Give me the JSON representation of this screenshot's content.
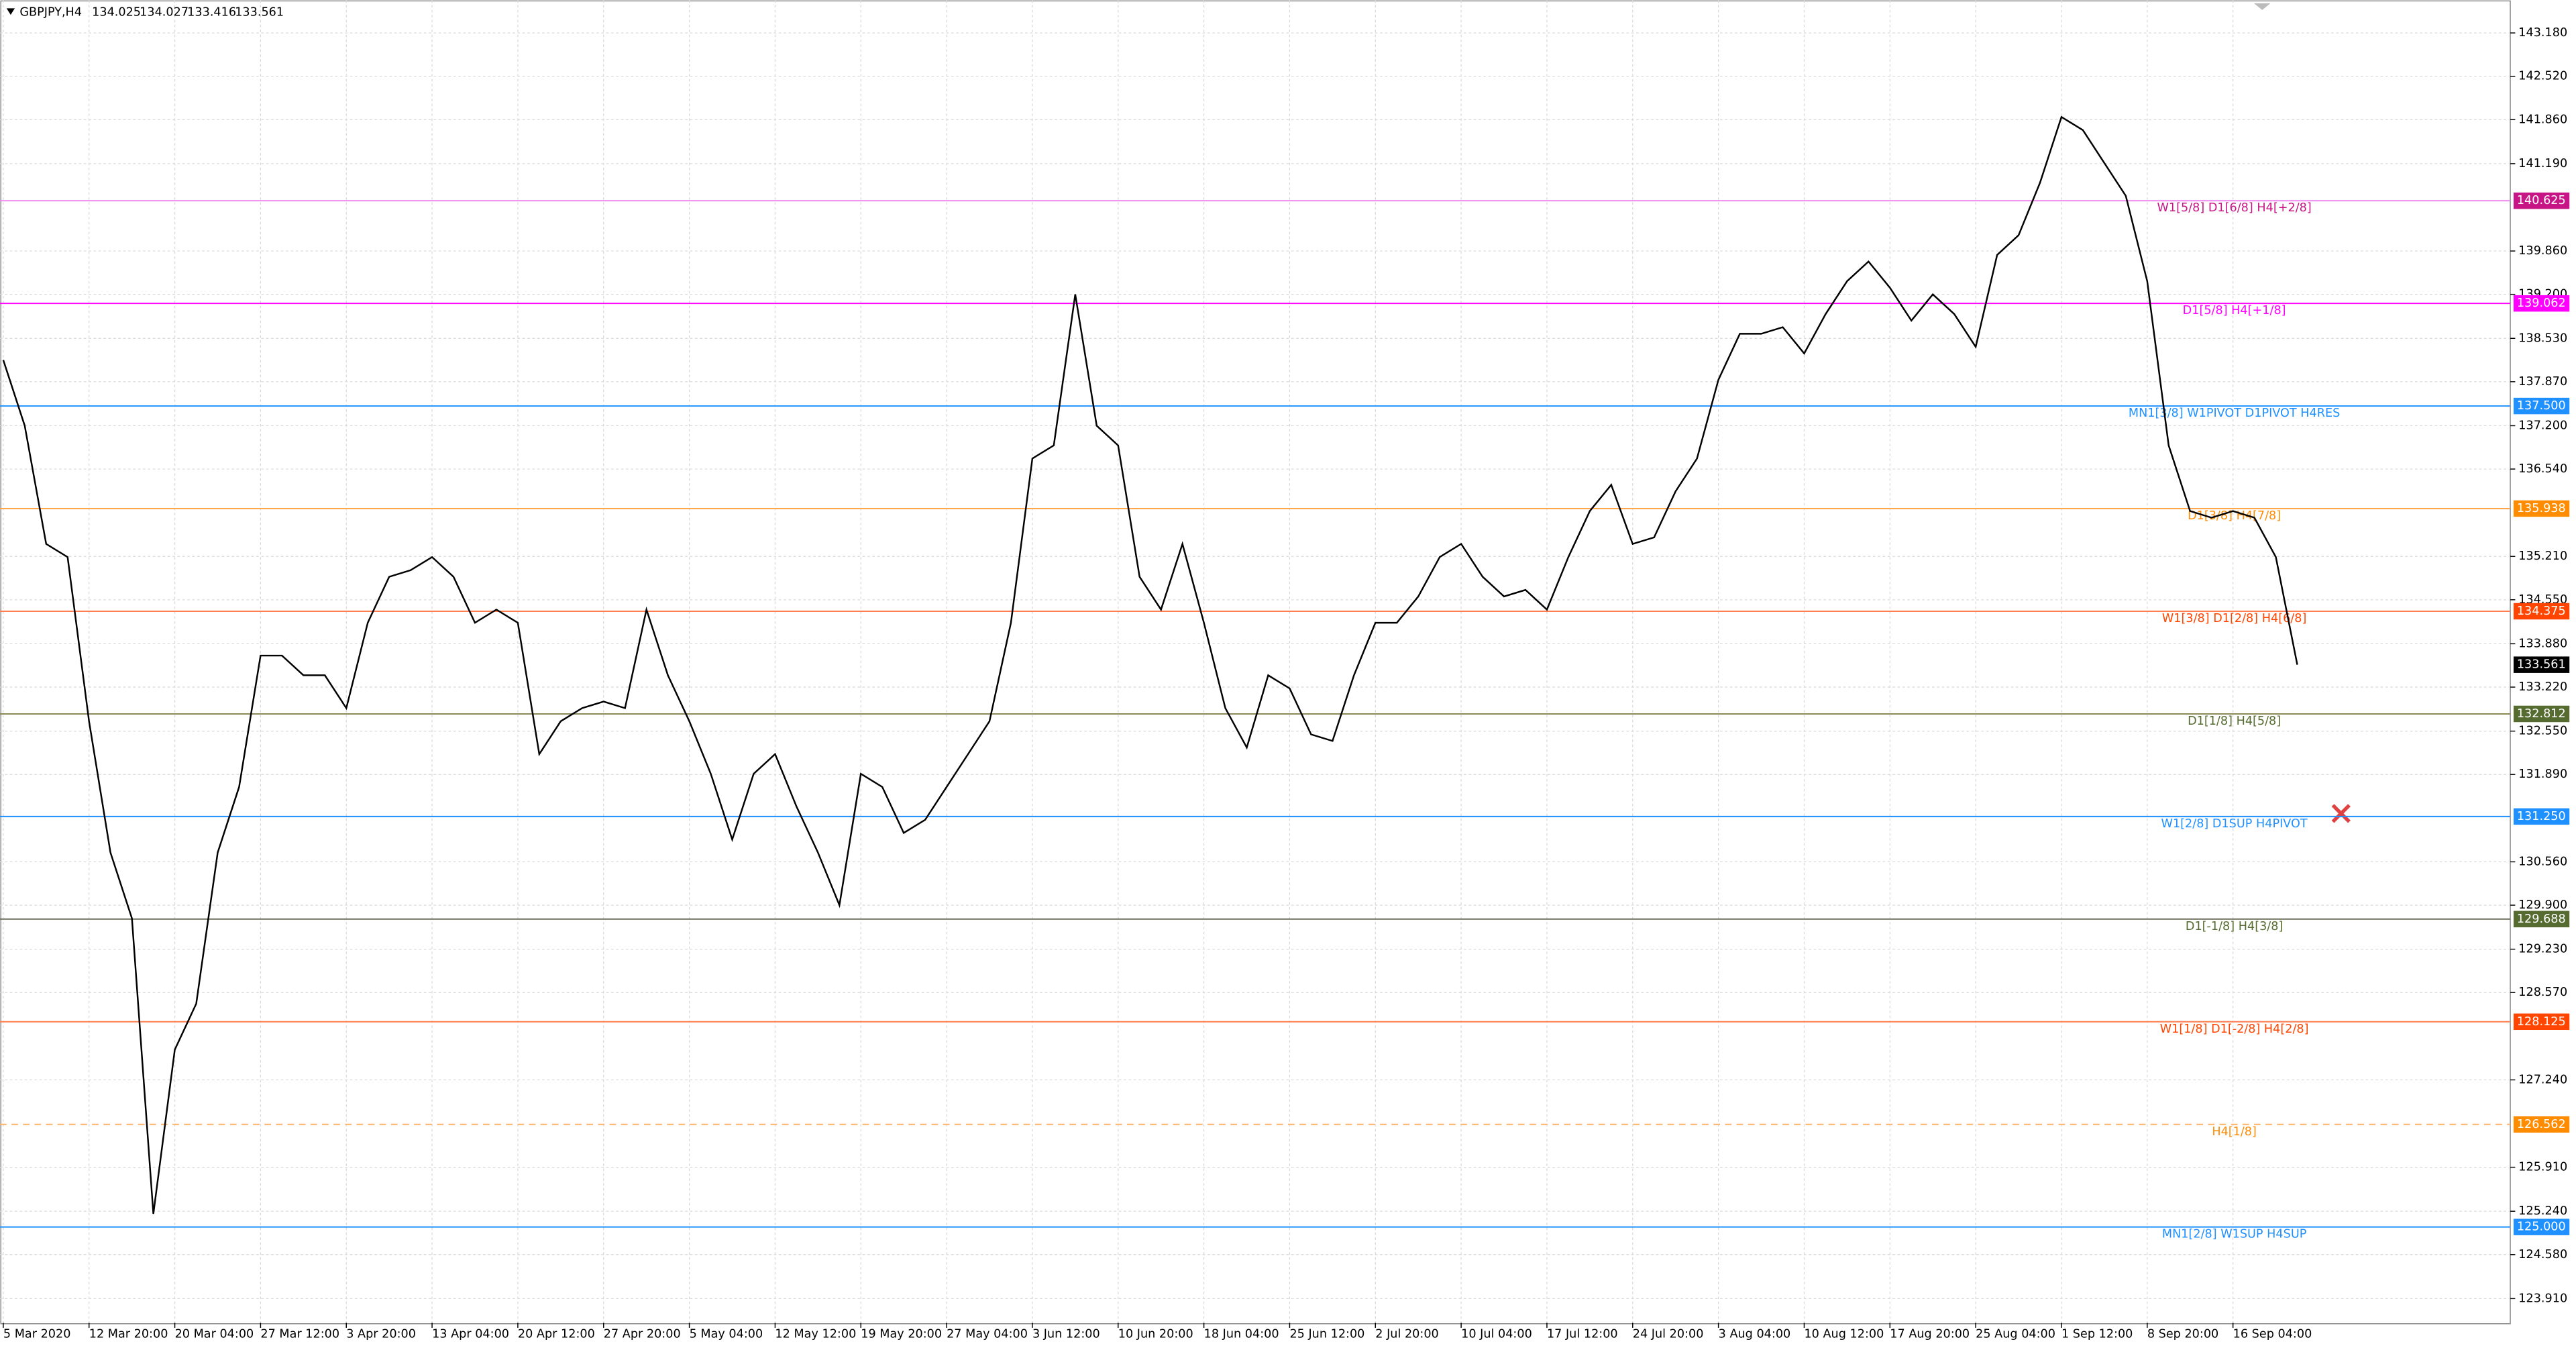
{
  "chart_data": {
    "type": "line",
    "title": "GBPJPY,H4",
    "header_values": [
      134.025,
      134.027,
      133.416,
      133.561
    ],
    "categories": [
      "5 Mar 2020",
      null,
      null,
      null,
      "12 Mar 20:00",
      null,
      null,
      null,
      "20 Mar 04:00",
      null,
      null,
      null,
      "27 Mar 12:00",
      null,
      null,
      null,
      "3 Apr 20:00",
      null,
      null,
      null,
      "13 Apr 04:00",
      null,
      null,
      null,
      "20 Apr 12:00",
      null,
      null,
      null,
      "27 Apr 20:00",
      null,
      null,
      null,
      "5 May 04:00",
      null,
      null,
      null,
      "12 May 12:00",
      null,
      null,
      null,
      "19 May 20:00",
      null,
      null,
      null,
      "27 May 04:00",
      null,
      null,
      null,
      "3 Jun 12:00",
      null,
      null,
      null,
      "10 Jun 20:00",
      null,
      null,
      null,
      "18 Jun 04:00",
      null,
      null,
      null,
      "25 Jun 12:00",
      null,
      null,
      null,
      "2 Jul 20:00",
      null,
      null,
      null,
      "10 Jul 04:00",
      null,
      null,
      null,
      "17 Jul 12:00",
      null,
      null,
      null,
      "24 Jul 20:00",
      null,
      null,
      null,
      "3 Aug 04:00",
      null,
      null,
      null,
      "10 Aug 12:00",
      null,
      null,
      null,
      "17 Aug 20:00",
      null,
      null,
      null,
      "25 Aug 04:00",
      null,
      null,
      null,
      "1 Sep 12:00",
      null,
      null,
      null,
      "8 Sep 20:00",
      null,
      null,
      null,
      "16 Sep 04:00",
      null,
      null,
      null
    ],
    "color": "#000000",
    "values": [
      138.2,
      137.2,
      135.4,
      135.2,
      132.7,
      130.7,
      129.7,
      125.2,
      127.7,
      128.4,
      130.7,
      131.7,
      133.7,
      133.7,
      133.4,
      133.4,
      132.9,
      134.2,
      134.9,
      135.0,
      135.2,
      134.9,
      134.2,
      134.4,
      134.2,
      132.2,
      132.7,
      132.9,
      133.0,
      132.9,
      134.4,
      133.4,
      132.7,
      131.9,
      130.9,
      131.9,
      132.2,
      131.4,
      130.7,
      129.9,
      131.9,
      131.7,
      131.0,
      131.2,
      131.7,
      132.2,
      132.7,
      134.2,
      136.7,
      136.9,
      139.2,
      137.2,
      136.9,
      134.9,
      134.4,
      135.4,
      134.2,
      132.9,
      132.3,
      133.4,
      133.2,
      132.5,
      132.4,
      133.4,
      134.2,
      134.2,
      134.6,
      135.2,
      135.4,
      134.9,
      134.6,
      134.7,
      134.4,
      135.2,
      135.9,
      136.3,
      135.4,
      135.5,
      136.2,
      136.7,
      137.9,
      138.6,
      138.6,
      138.7,
      138.3,
      138.9,
      139.4,
      139.7,
      139.3,
      138.8,
      139.2,
      138.9,
      138.4,
      139.8,
      140.1,
      140.9,
      141.9,
      141.7,
      141.2,
      140.7,
      139.4,
      136.9,
      135.9,
      135.8,
      135.9,
      135.8,
      135.2,
      133.561
    ],
    "ylim": [
      123.54,
      143.68
    ],
    "yticks": [
      {
        "value": 143.18,
        "label": "143.180"
      },
      {
        "value": 142.52,
        "label": "142.520"
      },
      {
        "value": 141.86,
        "label": "141.860"
      },
      {
        "value": 141.19,
        "label": "141.190"
      },
      {
        "value": 139.86,
        "label": "139.860"
      },
      {
        "value": 139.2,
        "label": "139.200"
      },
      {
        "value": 138.53,
        "label": "138.530"
      },
      {
        "value": 137.87,
        "label": "137.870"
      },
      {
        "value": 137.2,
        "label": "137.200"
      },
      {
        "value": 136.54,
        "label": "136.540"
      },
      {
        "value": 135.21,
        "label": "135.210"
      },
      {
        "value": 134.55,
        "label": "134.550"
      },
      {
        "value": 133.88,
        "label": "133.880"
      },
      {
        "value": 133.22,
        "label": "133.220"
      },
      {
        "value": 132.55,
        "label": "132.550"
      },
      {
        "value": 131.89,
        "label": "131.890"
      },
      {
        "value": 130.56,
        "label": "130.560"
      },
      {
        "value": 129.9,
        "label": "129.900"
      },
      {
        "value": 129.23,
        "label": "129.230"
      },
      {
        "value": 128.57,
        "label": "128.570"
      },
      {
        "value": 127.24,
        "label": "127.240"
      },
      {
        "value": 125.91,
        "label": "125.910"
      },
      {
        "value": 125.24,
        "label": "125.240"
      },
      {
        "value": 124.58,
        "label": "124.580"
      },
      {
        "value": 123.91,
        "label": "123.910"
      }
    ],
    "grid": true,
    "levels": [
      {
        "value": 140.625,
        "price_label": "140.625",
        "label": "W1[5/8] D1[6/8] H4[+2/8]",
        "color": "#c71585",
        "line_color": "#ee82ee",
        "dashed": false
      },
      {
        "value": 139.062,
        "price_label": "139.062",
        "label": "D1[5/8] H4[+1/8]",
        "color": "#ff00ff",
        "line_color": "#ff00ff",
        "dashed": false
      },
      {
        "value": 137.5,
        "price_label": "137.500",
        "label": "MN1[3/8] W1PIVOT D1PIVOT H4RES",
        "color": "#1e90ff",
        "line_color": "#1e90ff",
        "dashed": false
      },
      {
        "value": 135.938,
        "price_label": "135.938",
        "label": "D1[3/8] H4[7/8]",
        "color": "#ff8c00",
        "line_color": "#ffa64d",
        "dashed": false
      },
      {
        "value": 134.375,
        "price_label": "134.375",
        "label": "W1[3/8] D1[2/8] H4[6/8]",
        "color": "#ff4500",
        "line_color": "#ff7f50",
        "dashed": false
      },
      {
        "value": 132.812,
        "price_label": "132.812",
        "label": "D1[1/8] H4[5/8]",
        "color": "#556b2f",
        "line_color": "#8b8b5a",
        "dashed": false
      },
      {
        "value": 131.25,
        "price_label": "131.250",
        "label": "W1[2/8] D1SUP H4PIVOT",
        "color": "#1e90ff",
        "line_color": "#1e90ff",
        "dashed": false
      },
      {
        "value": 129.688,
        "price_label": "129.688",
        "label": "D1[-1/8] H4[3/8]",
        "color": "#556b2f",
        "line_color": "#6b6b5a",
        "dashed": false
      },
      {
        "value": 128.125,
        "price_label": "128.125",
        "label": "W1[1/8] D1[-2/8] H4[2/8]",
        "color": "#ff4500",
        "line_color": "#ff7f50",
        "dashed": false
      },
      {
        "value": 126.562,
        "price_label": "126.562",
        "label": "H4[1/8]",
        "color": "#ff8c00",
        "line_color": "#ffb366",
        "dashed": true
      },
      {
        "value": 125.0,
        "price_label": "125.000",
        "label": "MN1[2/8] W1SUP H4SUP",
        "color": "#1e90ff",
        "line_color": "#1e90ff",
        "dashed": false
      }
    ],
    "last_price": 133.561
  }
}
